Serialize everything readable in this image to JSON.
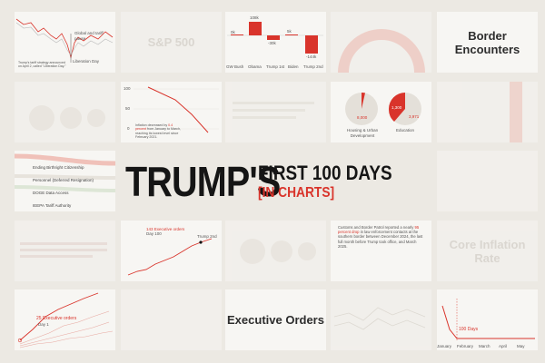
{
  "colors": {
    "accent": "#d9342b",
    "ink": "#151515",
    "tile": "#f7f6f3",
    "background": "#ece9e3"
  },
  "headline": {
    "main": "TRUMP'S",
    "line1": "FIRST 100 DAYS",
    "line2": "[IN CHARTS]"
  },
  "tiles": {
    "tariff_line": {
      "note_top": "Global and tariff pause",
      "note_bottom": "Liberation Day",
      "footnote": "Trump's tariff strategy announced on April 2, called \"Liberation Day.\""
    },
    "sp500": {
      "title": "S&P 500"
    },
    "waterfall": {
      "categories": [
        "GW Bush",
        "Obama",
        "Trump 1st",
        "Biden",
        "Trump 2nd"
      ],
      "labels": [
        "0k",
        "108k",
        "-30k",
        "5k",
        "-144k"
      ]
    },
    "border_arc": {
      "title": "Border Encounters"
    },
    "line_decline": {
      "yticks": [
        "100",
        "50",
        "0"
      ],
      "text_before": "Inflation decreased by",
      "text_red": "0.4 percent",
      "text_after": "from January to March, reaching its lowest level since February 2021."
    },
    "pies": {
      "left_value": "8,000",
      "left_label": "Housing & Urban Development",
      "right_value_red": "1,300",
      "right_value": "3,971",
      "right_label": "Education"
    },
    "legend": {
      "items": [
        "Ending Birthright Citizenship",
        "Personnel (Deferred Resignation)",
        "DOGE Data Access",
        "IEEPA Tariff Authority"
      ]
    },
    "exec_orders_curve": {
      "label": "143 Executive orders",
      "sublabel": "Day 100",
      "marker": "Trump 2nd"
    },
    "border_text": {
      "text_before": "Customs and Border Patrol reported a nearly",
      "text_red": "95 percent drop",
      "text_after": "in law enforcement contacts at the southern border between December 2024, the last full month before Trump took office, and March 2025."
    },
    "core_inflation": {
      "title": "Core Inflation Rate"
    },
    "exec_orders_multi": {
      "label": "25 Executive orders",
      "sublabel": "Day 1"
    },
    "executive_orders": {
      "title": "Executive Orders"
    },
    "days_100": {
      "label": "100 Days",
      "xticks": [
        "January",
        "February",
        "March",
        "April",
        "May"
      ]
    }
  }
}
